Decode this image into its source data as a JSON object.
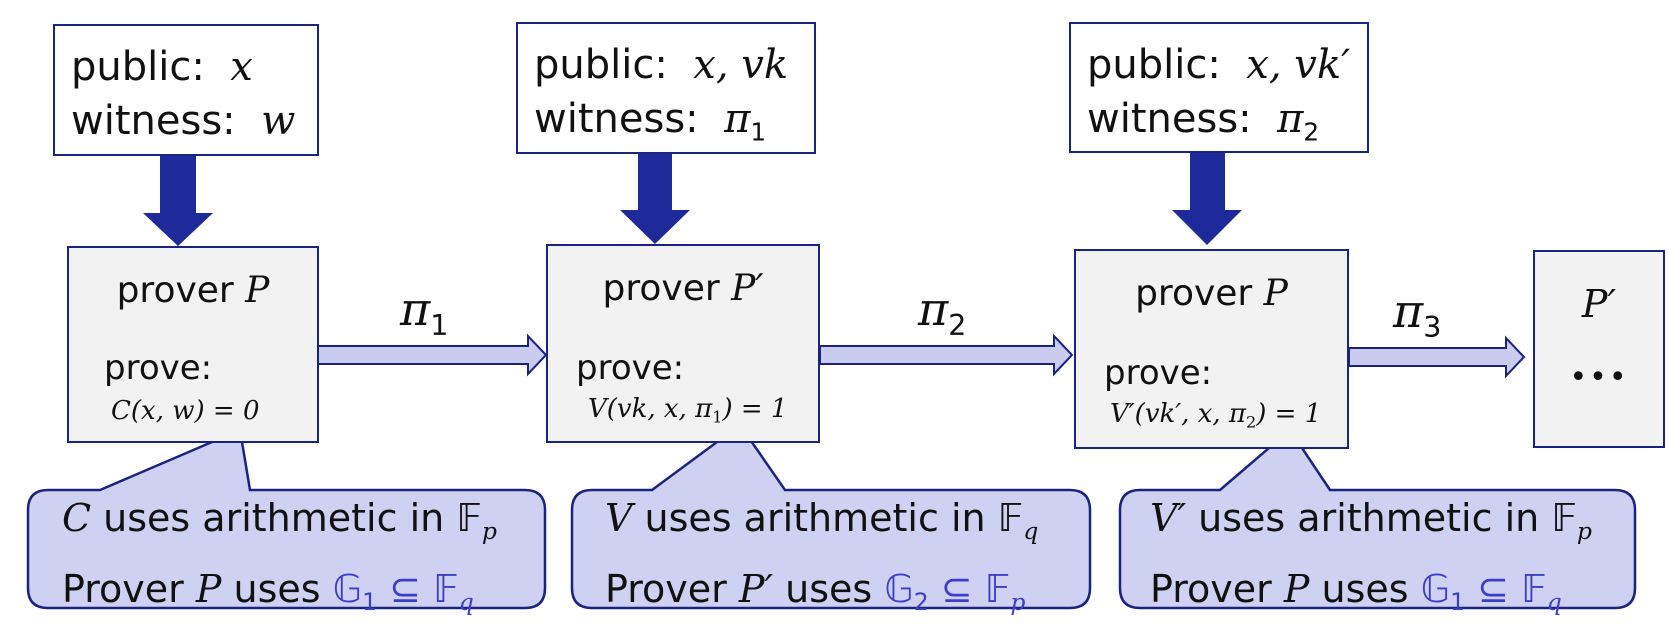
{
  "inputs": [
    {
      "public_label": "public:",
      "public_val": "x",
      "witness_label": "witness:",
      "witness_val": "w"
    },
    {
      "public_label": "public:",
      "public_val": "x, vk",
      "witness_label": "witness:",
      "witness_val": "π",
      "witness_sub": "1"
    },
    {
      "public_label": "public:",
      "public_val": "x, vk′",
      "witness_label": "witness:",
      "witness_val": "π",
      "witness_sub": "2"
    }
  ],
  "provers": [
    {
      "title": "prover",
      "sym": "P",
      "prove": "prove:",
      "eq": "C(x, w) = 0"
    },
    {
      "title": "prover",
      "sym": "P′",
      "prove": "prove:",
      "eq_pre": "V(vk, x, π",
      "eq_sub": "1",
      "eq_post": ") = 1"
    },
    {
      "title": "prover",
      "sym": "P",
      "prove": "prove:",
      "eq_pre": "V′(vk′, x, π",
      "eq_sub": "2",
      "eq_post": ") = 1"
    },
    {
      "sym": "P′",
      "dots": "•••"
    }
  ],
  "pis": [
    {
      "sym": "π",
      "sub": "1"
    },
    {
      "sym": "π",
      "sub": "2"
    },
    {
      "sym": "π",
      "sub": "3"
    }
  ],
  "callouts": [
    {
      "l1_sym": "C",
      "l1_text": "uses arithmetic in",
      "l1_field": "𝔽",
      "l1_sub": "p",
      "l2_a": "Prover",
      "l2_sym": "P",
      "l2_b": "uses",
      "l2_group": "𝔾",
      "l2_gsub": "1",
      "l2_sub_rel": "⊆ 𝔽",
      "l2_fsub": "q"
    },
    {
      "l1_sym": "V",
      "l1_text": "uses arithmetic in",
      "l1_field": "𝔽",
      "l1_sub": "q",
      "l2_a": "Prover",
      "l2_sym": "P′",
      "l2_b": "uses",
      "l2_group": "𝔾",
      "l2_gsub": "2",
      "l2_sub_rel": "⊆ 𝔽",
      "l2_fsub": "p"
    },
    {
      "l1_sym": "V′",
      "l1_text": "uses arithmetic in",
      "l1_field": "𝔽",
      "l1_sub": "p",
      "l2_a": "Prover",
      "l2_sym": "P",
      "l2_b": "uses",
      "l2_group": "𝔾",
      "l2_gsub": "1",
      "l2_sub_rel": "⊆ 𝔽",
      "l2_fsub": "q"
    }
  ],
  "colors": {
    "arrow_dark": "#1f2a9a",
    "arrow_light": "#c9cbef",
    "callout_fill": "#cfd1f2",
    "stroke": "#1a237e"
  }
}
